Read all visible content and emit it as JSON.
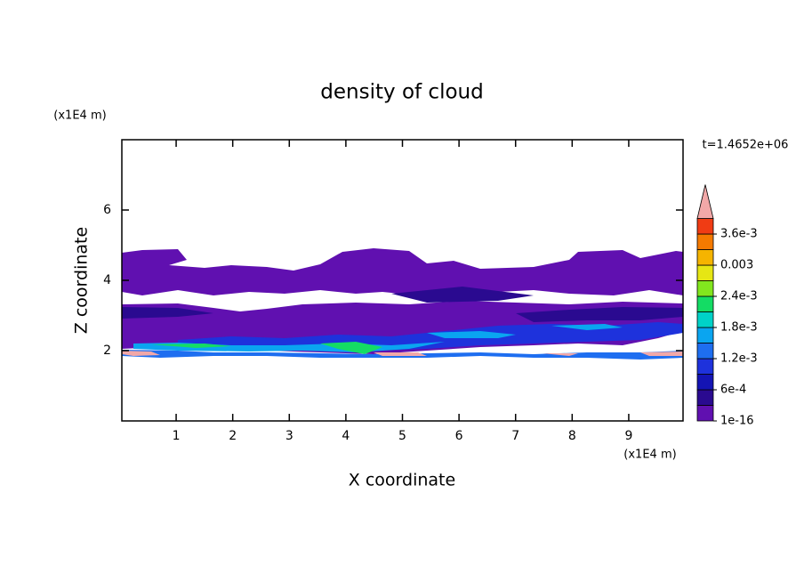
{
  "chart_data": {
    "type": "contour",
    "title": "density of cloud",
    "xlabel": "X coordinate",
    "ylabel": "Z coordinate",
    "xunit": "(x1E4 m)",
    "yunit": "(x1E4 m)",
    "time_label": "t=1.4652e+06",
    "xlim": [
      0.04,
      9.96
    ],
    "xticks": [
      1,
      2,
      3,
      4,
      5,
      6,
      7,
      8,
      9
    ],
    "ylim": [
      0,
      8
    ],
    "yticks": [
      2,
      4,
      6
    ],
    "colorbar": {
      "colors": [
        "#6010b0",
        "#2a0a90",
        "#1414b4",
        "#1e32dc",
        "#1e6ef0",
        "#0aa5f0",
        "#00d2c8",
        "#14dc64",
        "#82e61e",
        "#e6e614",
        "#f5b400",
        "#f57a00",
        "#f03c14"
      ],
      "extend_color": "#f2a8a8",
      "ticks": [
        {
          "value": 1e-16,
          "label": "1e-16"
        },
        {
          "value": 0.0006,
          "label": "6e-4"
        },
        {
          "value": 0.0012,
          "label": "1.2e-3"
        },
        {
          "value": 0.0018,
          "label": "1.8e-3"
        },
        {
          "value": 0.0024,
          "label": "2.4e-3"
        },
        0.003,
        {
          "value": 0.0036,
          "label": "3.6e-3"
        }
      ]
    }
  }
}
